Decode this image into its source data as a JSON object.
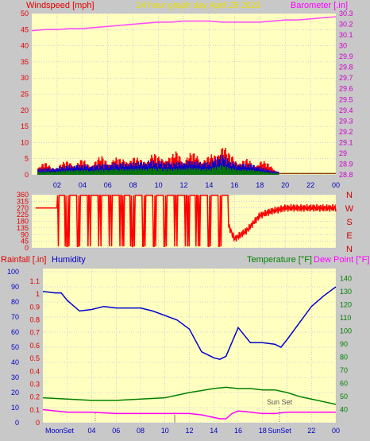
{
  "header": {
    "left_label": "Windspeed [mph]",
    "title": "24 hour graph day   April 25 2023",
    "right_label": "Barometer [.in]"
  },
  "wind_dir_labels": [
    "N",
    "W",
    "S",
    "E",
    "N"
  ],
  "lower": {
    "rain_label": "Rainfall [.in]",
    "humidity_label": "Humidity",
    "temp_label": "Temperature [°F]",
    "dew_label": "Dew Point [°F]",
    "sunset_annotation": "Sun Set",
    "moonset_label": "MoonSet",
    "sunset_axis_label": "SunSet"
  },
  "colors": {
    "background": "#c8c8c8",
    "plot_bg": "#ffffc0",
    "grid": "#a0a0ff",
    "red": "#ff0000",
    "blue": "#0000d0",
    "green": "#008000",
    "magenta": "#ff00ff",
    "gold": "#e8e000",
    "barometer": "#ff44ff"
  },
  "chart_data": [
    {
      "type": "line",
      "title": "24 hour graph day   April 25 2023",
      "x_ticks": [
        "02",
        "04",
        "06",
        "08",
        "10",
        "12",
        "14",
        "16",
        "18",
        "20",
        "22",
        "00"
      ],
      "xlim": [
        0,
        24
      ],
      "left_axis": {
        "label": "Windspeed [mph]",
        "range": [
          0,
          50
        ],
        "ticks": [
          0,
          5,
          10,
          15,
          20,
          25,
          30,
          35,
          40,
          45,
          50
        ]
      },
      "right_axis": {
        "label": "Barometer [.in]",
        "range": [
          28.8,
          30.3
        ],
        "ticks": [
          "28.8",
          "28.9",
          "29",
          "29.1",
          "29.2",
          "29.3",
          "29.4",
          "29.5",
          "29.6",
          "29.7",
          "29.8",
          "29.9",
          "30",
          "30.1",
          "30.2",
          "30.3"
        ]
      },
      "grid": true,
      "series": [
        {
          "name": "Barometer [.in]",
          "axis": "right",
          "x": [
            0,
            1,
            2,
            3,
            4,
            5,
            6,
            7,
            8,
            9,
            10,
            11,
            12,
            13,
            14,
            15,
            16,
            17,
            18,
            19,
            20,
            21,
            22,
            23,
            24
          ],
          "y": [
            30.14,
            30.15,
            30.15,
            30.16,
            30.16,
            30.17,
            30.18,
            30.19,
            30.2,
            30.21,
            30.22,
            30.22,
            30.23,
            30.23,
            30.23,
            30.22,
            30.22,
            30.22,
            30.22,
            30.23,
            30.24,
            30.24,
            30.25,
            30.26,
            30.27
          ]
        },
        {
          "name": "Wind gust",
          "axis": "left",
          "x": [
            0.5,
            1,
            1.5,
            2,
            2.5,
            3,
            3.5,
            4,
            4.5,
            5,
            5.5,
            6,
            6.5,
            7,
            7.5,
            8,
            8.5,
            9,
            9.5,
            10,
            10.5,
            11,
            11.5,
            12,
            12.5,
            13,
            13.5,
            14,
            14.5,
            15,
            15.5,
            16,
            16.5,
            17,
            17.5,
            18,
            18.5,
            19,
            19.5
          ],
          "y": [
            3,
            4,
            3,
            3,
            4,
            5,
            4,
            5,
            4,
            5,
            6,
            5,
            6,
            5,
            6,
            6,
            5,
            6,
            7,
            6,
            7,
            6,
            8,
            6,
            7,
            7,
            6,
            6,
            7,
            12,
            7,
            6,
            5,
            5,
            4,
            5,
            4,
            3,
            1
          ]
        },
        {
          "name": "Wind average",
          "axis": "left",
          "x": [
            0.5,
            2,
            3.5,
            5,
            6.5,
            8,
            9.5,
            11,
            12.5,
            14,
            15,
            16,
            17.5,
            19
          ],
          "y": [
            1.5,
            2,
            2.5,
            2.5,
            3,
            3,
            3.5,
            3,
            3.5,
            3,
            5,
            3,
            2.5,
            1
          ]
        }
      ]
    },
    {
      "type": "line",
      "title": "Wind direction",
      "left_axis": {
        "range": [
          0,
          360
        ],
        "ticks": [
          0,
          45,
          90,
          135,
          180,
          225,
          270,
          315,
          360
        ]
      },
      "right_axis_labels": [
        "N",
        "W",
        "S",
        "E",
        "N"
      ],
      "series": [
        {
          "name": "Wind direction",
          "x": [
            0,
            1,
            2,
            3,
            4,
            5,
            6,
            7,
            8,
            9,
            10,
            11,
            12,
            13,
            14,
            15,
            16,
            17,
            18,
            19,
            20,
            21,
            22,
            23,
            24
          ],
          "y": [
            270,
            270,
            270,
            200,
            180,
            200,
            180,
            180,
            200,
            180,
            200,
            180,
            200,
            220,
            200,
            250,
            60,
            120,
            220,
            250,
            270,
            270,
            270,
            270,
            270
          ]
        }
      ]
    },
    {
      "type": "line",
      "x_ticks": [
        "02",
        "04",
        "06",
        "08",
        "10",
        "12",
        "14",
        "16",
        "18",
        "20",
        "22",
        "00"
      ],
      "xlim": [
        0,
        24
      ],
      "left_axis_rain": {
        "label": "Rainfall [.in]",
        "range": [
          0,
          1.1
        ],
        "ticks": [
          "0",
          "0.1",
          "0.2",
          "0.3",
          "0.4",
          "0.5",
          "0.6",
          "0.7",
          "0.8",
          "0.9",
          "1",
          "1.1"
        ]
      },
      "left_axis_humidity": {
        "label": "Humidity",
        "range": [
          0,
          100
        ],
        "ticks": [
          0,
          10,
          20,
          30,
          40,
          50,
          60,
          70,
          80,
          90,
          100
        ]
      },
      "right_axis": {
        "label": "Temperature [°F]",
        "range": [
          30,
          145
        ],
        "ticks": [
          40,
          50,
          60,
          70,
          80,
          90,
          100,
          110,
          120,
          130,
          140
        ]
      },
      "grid": true,
      "series": [
        {
          "name": "Humidity",
          "axis": "humidity",
          "x": [
            0,
            1,
            1.5,
            2,
            3,
            4,
            5,
            6,
            7,
            8,
            9,
            10,
            11,
            12,
            13,
            14,
            14.5,
            15,
            16,
            16.5,
            17,
            18,
            19,
            19.5,
            20,
            21,
            22,
            23,
            24
          ],
          "y": [
            87,
            86,
            86,
            81,
            74,
            75,
            77,
            76,
            76,
            76,
            74,
            71,
            68,
            62,
            47,
            43,
            42,
            44,
            63,
            58,
            53,
            53,
            52,
            50,
            55,
            66,
            77,
            84,
            90
          ]
        },
        {
          "name": "Temperature [°F]",
          "axis": "right",
          "x": [
            0,
            2,
            4,
            6,
            8,
            10,
            12,
            14,
            15,
            16,
            17,
            18,
            19,
            20,
            21,
            22,
            23,
            24
          ],
          "y": [
            49,
            48,
            47,
            47,
            48,
            49,
            53,
            56,
            57,
            56,
            56,
            55,
            55,
            53,
            50,
            48,
            46,
            44
          ]
        },
        {
          "name": "Dew Point [°F]",
          "axis": "right",
          "x": [
            0,
            2,
            4,
            6,
            8,
            10,
            12,
            13,
            14,
            14.5,
            15,
            15.5,
            16,
            17,
            18,
            19,
            20,
            22,
            24
          ],
          "y": [
            40,
            38,
            38,
            37,
            37,
            37,
            37,
            36,
            34,
            33,
            33,
            37,
            39,
            38,
            37,
            37,
            38,
            38,
            38
          ]
        }
      ]
    }
  ]
}
